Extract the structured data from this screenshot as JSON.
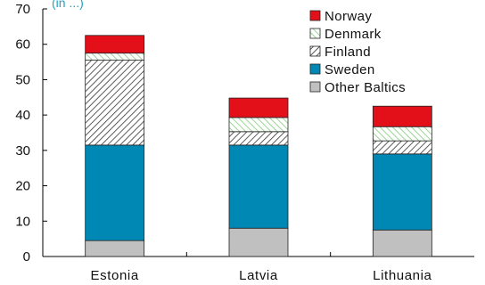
{
  "chart_data": {
    "type": "bar",
    "stacked": true,
    "subtitle": "(in ...)",
    "xlabel": "",
    "ylabel": "",
    "categories": [
      "Estonia",
      "Latvia",
      "Lithuania"
    ],
    "ylim": [
      0,
      70
    ],
    "yticks": [
      0,
      10,
      20,
      30,
      40,
      50,
      60,
      70
    ],
    "grid": false,
    "legend_position": "top-right",
    "series": [
      {
        "name": "Other Baltics",
        "values": [
          4.5,
          8.0,
          7.5
        ],
        "color": "#c0c0c0",
        "pattern": "solid"
      },
      {
        "name": "Sweden",
        "values": [
          27.0,
          23.5,
          21.5
        ],
        "color": "#0088b5",
        "pattern": "solid"
      },
      {
        "name": "Finland",
        "values": [
          24.0,
          3.8,
          3.7
        ],
        "color": "#ffffff",
        "pattern": "hatch-dark"
      },
      {
        "name": "Denmark",
        "values": [
          2.0,
          4.0,
          4.0
        ],
        "color": "#8fd18a",
        "pattern": "hatch-light"
      },
      {
        "name": "Norway",
        "values": [
          5.0,
          5.5,
          5.8
        ],
        "color": "#e3101a",
        "pattern": "solid"
      }
    ],
    "legend_order": [
      "Norway",
      "Denmark",
      "Finland",
      "Sweden",
      "Other Baltics"
    ]
  }
}
